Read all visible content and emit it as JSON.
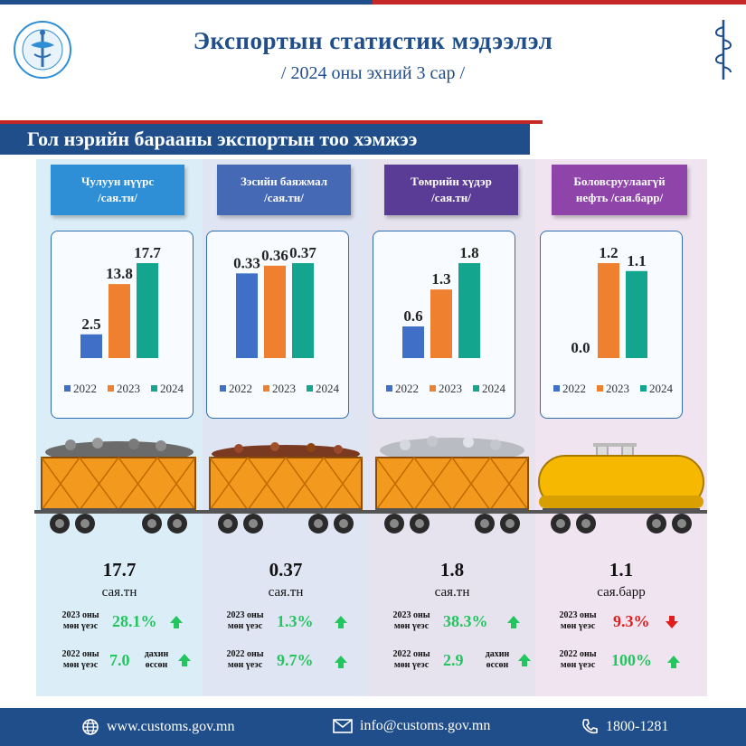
{
  "header": {
    "title": "Экспортын статистик мэдээлэл",
    "subtitle": "/ 2024 оны эхний 3 сар /",
    "banner": "Гол нэрийн барааны экспортын тоо хэмжээ"
  },
  "colors": {
    "y2022": "#3f6fc6",
    "y2023": "#ee8030",
    "y2024": "#13a58d",
    "up": "#22c55e",
    "down": "#e11d1d"
  },
  "chart_data": [
    {
      "type": "bar",
      "title": "Чулуун нүүрс /сая.тн/",
      "categories": [
        "2022",
        "2023",
        "2024"
      ],
      "values": [
        2.5,
        13.8,
        17.7
      ],
      "labels": [
        "2.5",
        "13.8",
        "17.7"
      ]
    },
    {
      "type": "bar",
      "title": "Зэсийн баяжмал /сая.тн/",
      "categories": [
        "2022",
        "2023",
        "2024"
      ],
      "values": [
        0.33,
        0.36,
        0.37
      ],
      "labels": [
        "0.33",
        "0.36",
        "0.37"
      ]
    },
    {
      "type": "bar",
      "title": "Төмрийн хүдэр /сая.тн/",
      "categories": [
        "2022",
        "2023",
        "2024"
      ],
      "values": [
        0.6,
        1.3,
        1.8
      ],
      "labels": [
        "0.6",
        "1.3",
        "1.8"
      ]
    },
    {
      "type": "bar",
      "title": "Боловсруулаагүй нефть /сая.барр/",
      "categories": [
        "2022",
        "2023",
        "2024"
      ],
      "values": [
        0.0,
        1.2,
        1.1
      ],
      "labels": [
        "0.0",
        "1.2",
        "1.1"
      ]
    }
  ],
  "products": [
    {
      "label_line1": "Чулуун нүүрс",
      "label_line2": "/сая.тн/",
      "value": "17.7",
      "unit": "сая.тн",
      "cmp1_label": [
        "2023 оны",
        "мөн үеэс"
      ],
      "cmp1_value": "28.1%",
      "cmp1_dir": "up",
      "cmp2_label": [
        "2022 оны",
        "мөн үеэс"
      ],
      "cmp2_value": "7.0",
      "cmp2_suffix": [
        "дахин",
        "өссөн"
      ],
      "cmp2_dir": "up"
    },
    {
      "label_line1": "Зэсийн баяжмал",
      "label_line2": "/сая.тн/",
      "value": "0.37",
      "unit": "сая.тн",
      "cmp1_label": [
        "2023 оны",
        "мөн үеэс"
      ],
      "cmp1_value": "1.3%",
      "cmp1_dir": "up",
      "cmp2_label": [
        "2022 оны",
        "мөн үеэс"
      ],
      "cmp2_value": "9.7%",
      "cmp2_dir": "up"
    },
    {
      "label_line1": "Төмрийн хүдэр",
      "label_line2": "/сая.тн/",
      "value": "1.8",
      "unit": "сая.тн",
      "cmp1_label": [
        "2023 оны",
        "мөн үеэс"
      ],
      "cmp1_value": "38.3%",
      "cmp1_dir": "up",
      "cmp2_label": [
        "2022 оны",
        "мөн үеэс"
      ],
      "cmp2_value": "2.9",
      "cmp2_suffix": [
        "дахин",
        "өссөн"
      ],
      "cmp2_dir": "up"
    },
    {
      "label_line1": "Боловсруулаагүй",
      "label_line2": "нефть /сая.барр/",
      "value": "1.1",
      "unit": "сая.барр",
      "cmp1_label": [
        "2023 оны",
        "мөн үеэс"
      ],
      "cmp1_value": "9.3%",
      "cmp1_dir": "down",
      "cmp2_label": [
        "2022 оны",
        "мөн үеэс"
      ],
      "cmp2_value": "100%",
      "cmp2_dir": "up"
    }
  ],
  "footer": {
    "website": "www.customs.gov.mn",
    "website_icon": "globe-icon",
    "email": "info@customs.gov.mn",
    "email_icon": "envelope-icon",
    "phone": "1800-1281",
    "phone_icon": "phone-icon"
  }
}
